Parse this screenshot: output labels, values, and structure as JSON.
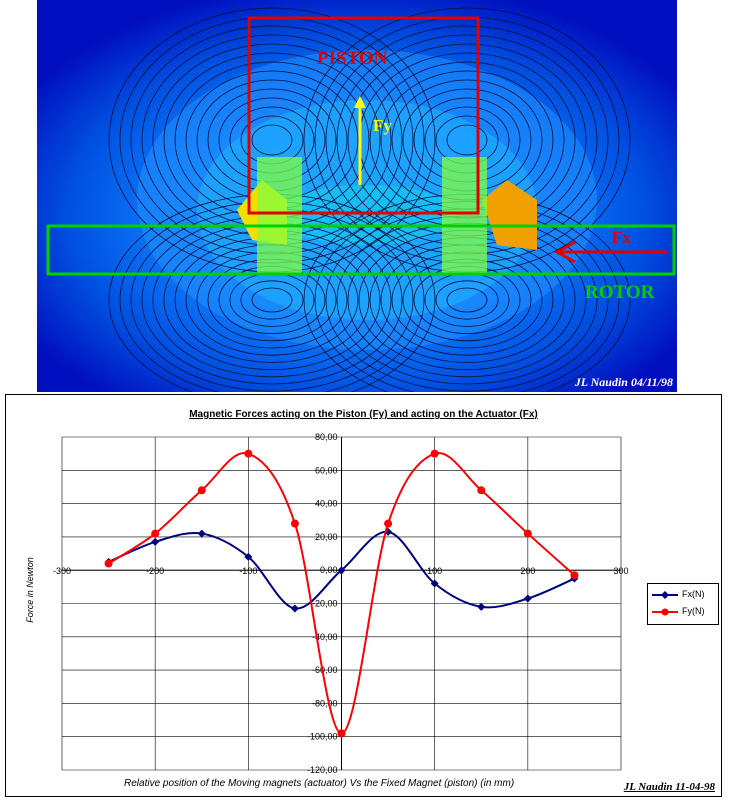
{
  "simulation": {
    "piston_label": "PISTON",
    "fy_label": "Fy",
    "fx_label": "Fx",
    "rotor_label": "ROTOR",
    "credit": "JL Naudin 04/11/98",
    "colors": {
      "background": "#0000c0",
      "piston_frame": "#e00000",
      "rotor_frame": "#00d000",
      "fy_arrow": "#ffff00",
      "fx_arrow": "#e00000"
    }
  },
  "chart_data": {
    "type": "line",
    "title": "Magnetic Forces acting on the Piston (Fy) and acting on the Actuator (Fx)",
    "xlabel": "Relative position of the Moving magnets (actuator) Vs the Fixed Magnet (piston) (in mm)",
    "ylabel": "Force in Newton",
    "xlim": [
      -300,
      300
    ],
    "ylim": [
      -120,
      80
    ],
    "x_ticks": [
      -300,
      -200,
      -100,
      0,
      100,
      200,
      300
    ],
    "y_ticks": [
      "80,00",
      "60,00",
      "40,00",
      "20,00",
      "0,00",
      "-20,00",
      "-40,00",
      "-60,00",
      "-80,00",
      "-100,00",
      "-120,00"
    ],
    "y_tick_values": [
      80,
      60,
      40,
      20,
      0,
      -20,
      -40,
      -60,
      -80,
      -100,
      -120
    ],
    "grid": "vertical and horizontal",
    "legend_position": "right",
    "series": [
      {
        "name": "Fx(N)",
        "color": "#000080",
        "marker": "diamond",
        "x": [
          -250,
          -200,
          -150,
          -100,
          -50,
          0,
          50,
          100,
          150,
          200,
          250
        ],
        "y": [
          5,
          17,
          22,
          8,
          -23,
          0,
          23,
          -8,
          -22,
          -17,
          -5
        ]
      },
      {
        "name": "Fy(N)",
        "color": "#ff0000",
        "marker": "circle",
        "x": [
          -250,
          -200,
          -150,
          -100,
          -50,
          0,
          50,
          100,
          150,
          200,
          250
        ],
        "y": [
          4,
          22,
          48,
          70,
          28,
          -98,
          28,
          70,
          48,
          22,
          -3
        ]
      }
    ],
    "credit": "JL Naudin 11-04-98"
  }
}
